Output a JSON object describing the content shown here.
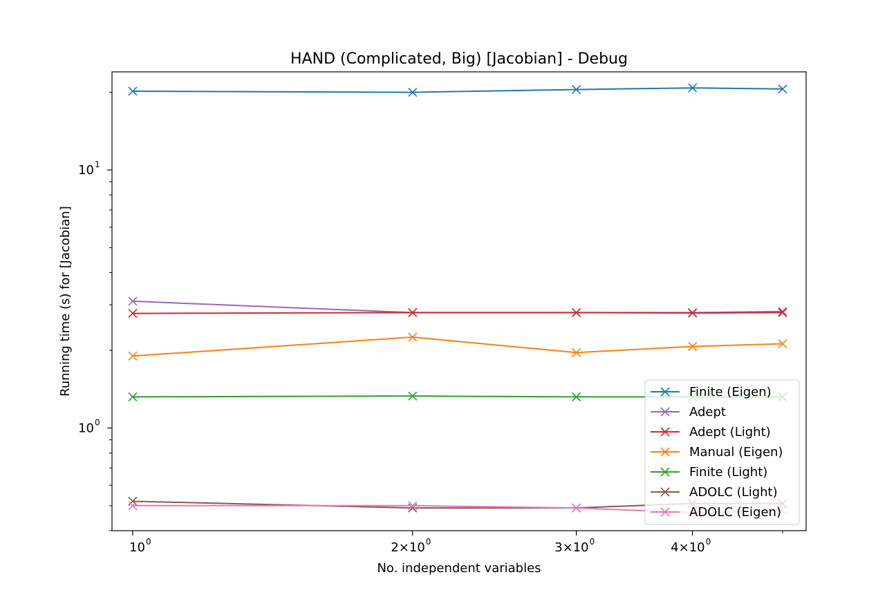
{
  "chart_data": {
    "type": "line",
    "title": "HAND (Complicated, Big) [Jacobian] - Debug",
    "xlabel": "No. independent variables",
    "ylabel": "Running time (s) for [Jacobian]",
    "xscale": "log",
    "yscale": "log",
    "x": [
      1,
      2,
      3,
      4,
      5
    ],
    "xlim": [
      0.95,
      5.3
    ],
    "ylim": [
      0.4,
      24
    ],
    "x_ticks": [
      {
        "value": 1,
        "label": "10",
        "exp": "0",
        "prefix": ""
      },
      {
        "value": 2,
        "label": "2×10",
        "exp": "0",
        "prefix": "2×"
      },
      {
        "value": 3,
        "label": "3×10",
        "exp": "0",
        "prefix": "3×"
      },
      {
        "value": 4,
        "label": "4×10",
        "exp": "0",
        "prefix": "4×"
      }
    ],
    "y_ticks": [
      {
        "value": 1,
        "label": "10",
        "exp": "0"
      },
      {
        "value": 10,
        "label": "10",
        "exp": "1"
      }
    ],
    "marker": "x",
    "grid": false,
    "legend_position": "lower-right",
    "series": [
      {
        "name": "Finite (Eigen)",
        "color": "#1f77b4",
        "values": [
          20.2,
          20.0,
          20.5,
          20.8,
          20.6
        ]
      },
      {
        "name": "Adept",
        "color": "#9467bd",
        "values": [
          3.1,
          2.8,
          2.8,
          2.8,
          2.83
        ]
      },
      {
        "name": "Adept (Light)",
        "color": "#d62728",
        "values": [
          2.78,
          2.8,
          2.8,
          2.79,
          2.8
        ]
      },
      {
        "name": "Manual (Eigen)",
        "color": "#ff7f0e",
        "values": [
          1.9,
          2.25,
          1.96,
          2.07,
          2.12
        ]
      },
      {
        "name": "Finite (Light)",
        "color": "#2ca02c",
        "values": [
          1.32,
          1.33,
          1.32,
          1.32,
          1.32
        ]
      },
      {
        "name": "ADOLC (Light)",
        "color": "#8c564b",
        "values": [
          0.52,
          0.49,
          0.49,
          0.51,
          0.51
        ]
      },
      {
        "name": "ADOLC (Eigen)",
        "color": "#e377c2",
        "values": [
          0.5,
          0.5,
          0.49,
          0.47,
          0.48
        ]
      }
    ]
  }
}
